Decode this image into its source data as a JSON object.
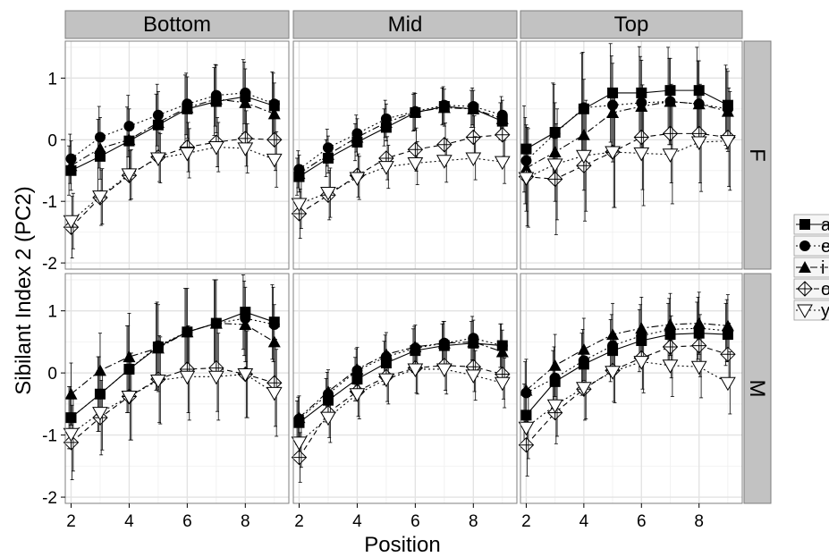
{
  "chart_data": {
    "type": "line",
    "xlabel": "Position",
    "ylabel": "Sibilant Index 2 (PC2)",
    "xlim": [
      1.8,
      9.5
    ],
    "ylim": [
      -2.1,
      1.6
    ],
    "x_ticks": [
      2,
      4,
      6,
      8
    ],
    "y_ticks": [
      -2,
      -1,
      0,
      1
    ],
    "grid": true,
    "legend_position": "right",
    "columns": [
      "Bottom",
      "Mid",
      "Top"
    ],
    "rows": [
      "F",
      "M"
    ],
    "x": [
      2,
      3,
      4,
      5,
      6,
      7,
      8,
      9
    ],
    "series_styles": [
      {
        "key": "a",
        "marker": "square",
        "dash": "solid"
      },
      {
        "key": "e",
        "marker": "circle",
        "dash": "dotted"
      },
      {
        "key": "i",
        "marker": "triangle",
        "dash": "dashdot"
      },
      {
        "key": "o",
        "marker": "diamond-cross",
        "dash": "dashed"
      },
      {
        "key": "y",
        "marker": "triangle-down",
        "dash": "dotted"
      }
    ],
    "legend_labels": [
      "a",
      "e",
      "i",
      "o",
      "y"
    ],
    "panels": [
      {
        "row": "F",
        "col": "Bottom",
        "series": [
          {
            "values": [
              -0.5,
              -0.27,
              -0.02,
              0.24,
              0.5,
              0.62,
              0.7,
              0.55
            ],
            "errors": [
              0.4,
              0.6,
              0.55,
              0.5,
              0.55,
              0.55,
              0.6,
              0.55
            ]
          },
          {
            "values": [
              -0.31,
              0.04,
              0.22,
              0.4,
              0.58,
              0.72,
              0.76,
              0.58
            ],
            "errors": [
              0.4,
              0.5,
              0.5,
              0.5,
              0.5,
              0.5,
              0.5,
              0.5
            ]
          },
          {
            "values": [
              -0.42,
              -0.14,
              0.0,
              0.28,
              0.52,
              0.66,
              0.6,
              0.42
            ],
            "errors": [
              0.4,
              0.5,
              0.5,
              0.5,
              0.5,
              0.55,
              0.55,
              0.5
            ]
          },
          {
            "values": [
              -1.42,
              -0.94,
              -0.58,
              -0.28,
              -0.12,
              -0.04,
              0.02,
              0.0
            ],
            "errors": [
              0.5,
              0.45,
              0.4,
              0.4,
              0.4,
              0.4,
              0.45,
              0.5
            ]
          },
          {
            "values": [
              -1.32,
              -0.92,
              -0.56,
              -0.3,
              -0.22,
              -0.12,
              -0.14,
              -0.32
            ],
            "errors": [
              0.45,
              0.45,
              0.4,
              0.4,
              0.4,
              0.4,
              0.4,
              0.45
            ]
          }
        ]
      },
      {
        "row": "F",
        "col": "Mid",
        "series": [
          {
            "values": [
              -0.6,
              -0.3,
              -0.04,
              0.2,
              0.44,
              0.54,
              0.5,
              0.3
            ],
            "errors": [
              0.3,
              0.3,
              0.3,
              0.3,
              0.3,
              0.3,
              0.3,
              0.3
            ]
          },
          {
            "values": [
              -0.48,
              -0.13,
              0.1,
              0.34,
              0.46,
              0.56,
              0.54,
              0.4
            ],
            "errors": [
              0.3,
              0.3,
              0.3,
              0.3,
              0.3,
              0.3,
              0.3,
              0.3
            ]
          },
          {
            "values": [
              -0.55,
              -0.24,
              0.04,
              0.28,
              0.45,
              0.52,
              0.5,
              0.34
            ],
            "errors": [
              0.3,
              0.3,
              0.3,
              0.3,
              0.3,
              0.3,
              0.3,
              0.3
            ]
          },
          {
            "values": [
              -1.2,
              -0.9,
              -0.58,
              -0.3,
              -0.16,
              -0.08,
              0.04,
              0.08
            ],
            "errors": [
              0.4,
              0.4,
              0.35,
              0.35,
              0.35,
              0.35,
              0.35,
              0.35
            ]
          },
          {
            "values": [
              -1.04,
              -0.86,
              -0.62,
              -0.44,
              -0.38,
              -0.34,
              -0.3,
              -0.36
            ],
            "errors": [
              0.4,
              0.4,
              0.35,
              0.35,
              0.35,
              0.35,
              0.35,
              0.35
            ]
          }
        ]
      },
      {
        "row": "F",
        "col": "Top",
        "series": [
          {
            "values": [
              -0.15,
              0.12,
              0.5,
              0.76,
              0.76,
              0.8,
              0.8,
              0.56
            ],
            "errors": [
              0.7,
              0.8,
              0.9,
              0.8,
              0.75,
              0.7,
              0.7,
              0.65
            ]
          },
          {
            "values": [
              -0.34,
              0.1,
              0.52,
              0.56,
              0.6,
              0.62,
              0.58,
              0.5
            ],
            "errors": [
              0.7,
              0.8,
              0.9,
              0.8,
              0.75,
              0.7,
              0.7,
              0.65
            ]
          },
          {
            "values": [
              -0.46,
              -0.2,
              0.08,
              0.44,
              0.54,
              0.62,
              0.58,
              0.46
            ],
            "errors": [
              0.7,
              0.8,
              0.9,
              0.8,
              0.75,
              0.7,
              0.7,
              0.65
            ]
          },
          {
            "values": [
              -0.6,
              -0.64,
              -0.42,
              -0.2,
              0.04,
              0.1,
              0.1,
              0.04
            ],
            "errors": [
              0.8,
              0.9,
              0.9,
              0.9,
              0.85,
              0.8,
              0.8,
              0.8
            ]
          },
          {
            "values": [
              -0.62,
              -0.4,
              -0.26,
              -0.2,
              -0.22,
              -0.24,
              -0.04,
              -0.02
            ],
            "errors": [
              0.8,
              0.9,
              0.9,
              0.9,
              0.85,
              0.8,
              0.8,
              0.8
            ]
          }
        ]
      },
      {
        "row": "M",
        "col": "Bottom",
        "series": [
          {
            "values": [
              -0.72,
              -0.34,
              0.06,
              0.42,
              0.66,
              0.8,
              0.98,
              0.82
            ],
            "errors": [
              0.5,
              0.6,
              0.7,
              0.7,
              0.7,
              0.7,
              0.6,
              0.6
            ]
          },
          {
            "values": [
              -0.72,
              -0.34,
              0.06,
              0.44,
              0.66,
              0.8,
              0.88,
              0.78
            ],
            "errors": [
              0.5,
              0.6,
              0.7,
              0.7,
              0.7,
              0.7,
              0.6,
              0.6
            ]
          },
          {
            "values": [
              -0.34,
              0.04,
              0.26,
              0.4,
              0.66,
              0.8,
              0.78,
              0.5
            ],
            "errors": [
              0.5,
              0.6,
              0.7,
              0.7,
              0.7,
              0.7,
              0.6,
              0.6
            ]
          },
          {
            "values": [
              -1.12,
              -0.72,
              -0.38,
              -0.1,
              0.06,
              0.08,
              -0.02,
              -0.16
            ],
            "errors": [
              0.6,
              0.6,
              0.7,
              0.7,
              0.7,
              0.7,
              0.7,
              0.7
            ]
          },
          {
            "values": [
              -0.98,
              -0.64,
              -0.38,
              -0.12,
              -0.06,
              -0.06,
              -0.02,
              -0.32
            ],
            "errors": [
              0.6,
              0.6,
              0.7,
              0.7,
              0.7,
              0.7,
              0.7,
              0.7
            ]
          }
        ]
      },
      {
        "row": "M",
        "col": "Mid",
        "series": [
          {
            "values": [
              -0.8,
              -0.44,
              -0.1,
              0.16,
              0.36,
              0.44,
              0.48,
              0.44
            ],
            "errors": [
              0.35,
              0.35,
              0.35,
              0.35,
              0.35,
              0.35,
              0.35,
              0.35
            ]
          },
          {
            "values": [
              -0.74,
              -0.34,
              0.04,
              0.26,
              0.4,
              0.48,
              0.56,
              0.44
            ],
            "errors": [
              0.35,
              0.35,
              0.35,
              0.35,
              0.35,
              0.35,
              0.35,
              0.35
            ]
          },
          {
            "values": [
              -0.72,
              -0.3,
              0.06,
              0.3,
              0.42,
              0.48,
              0.5,
              0.34
            ],
            "errors": [
              0.35,
              0.35,
              0.35,
              0.35,
              0.35,
              0.35,
              0.35,
              0.35
            ]
          },
          {
            "values": [
              -1.36,
              -0.64,
              -0.3,
              -0.06,
              0.08,
              0.12,
              0.1,
              -0.02
            ],
            "errors": [
              0.4,
              0.4,
              0.4,
              0.4,
              0.4,
              0.4,
              0.4,
              0.4
            ]
          },
          {
            "values": [
              -1.12,
              -0.72,
              -0.34,
              -0.1,
              0.06,
              0.06,
              -0.04,
              -0.16
            ],
            "errors": [
              0.4,
              0.4,
              0.4,
              0.4,
              0.4,
              0.4,
              0.4,
              0.4
            ]
          }
        ]
      },
      {
        "row": "M",
        "col": "Top",
        "series": [
          {
            "values": [
              -0.68,
              -0.14,
              0.14,
              0.36,
              0.52,
              0.62,
              0.64,
              0.62
            ],
            "errors": [
              0.5,
              0.5,
              0.5,
              0.5,
              0.5,
              0.5,
              0.5,
              0.5
            ]
          },
          {
            "values": [
              -0.32,
              -0.08,
              0.2,
              0.44,
              0.6,
              0.7,
              0.72,
              0.68
            ],
            "errors": [
              0.5,
              0.5,
              0.5,
              0.5,
              0.5,
              0.5,
              0.5,
              0.5
            ]
          },
          {
            "values": [
              -0.28,
              0.12,
              0.38,
              0.62,
              0.72,
              0.78,
              0.8,
              0.76
            ],
            "errors": [
              0.5,
              0.5,
              0.5,
              0.5,
              0.5,
              0.5,
              0.5,
              0.5
            ]
          },
          {
            "values": [
              -1.16,
              -0.64,
              -0.26,
              0.04,
              0.24,
              0.42,
              0.44,
              0.3
            ],
            "errors": [
              0.5,
              0.5,
              0.5,
              0.5,
              0.5,
              0.5,
              0.5,
              0.5
            ]
          },
          {
            "values": [
              -0.88,
              -0.52,
              -0.24,
              0.02,
              0.18,
              0.12,
              0.1,
              -0.16
            ],
            "errors": [
              0.5,
              0.5,
              0.5,
              0.5,
              0.5,
              0.5,
              0.5,
              0.5
            ]
          }
        ]
      }
    ]
  },
  "colors": {
    "strip_bg": "#c2c2c2",
    "strip_border": "#7f7f7f",
    "panel_border": "#7f7f7f",
    "grid_major": "#e3e3e3",
    "grid_minor": "#f2f2f2",
    "ink": "#000000"
  }
}
